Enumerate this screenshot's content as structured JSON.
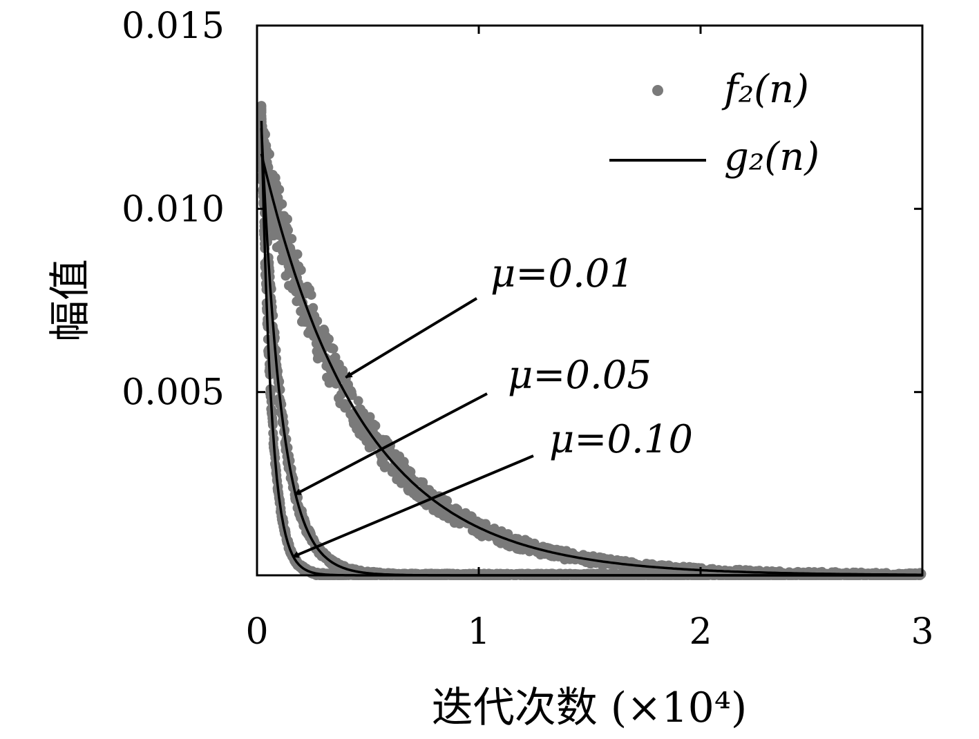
{
  "chart_data": {
    "type": "scatter",
    "xlabel": "迭代次数 (×10⁴)",
    "ylabel": "幅值",
    "xlim": [
      0,
      3
    ],
    "ylim": [
      0,
      0.015
    ],
    "x_ticks": [
      0,
      1,
      2,
      3
    ],
    "x_tick_labels": [
      "0",
      "1",
      "2",
      "3"
    ],
    "y_ticks": [
      0.005,
      0.01,
      0.015
    ],
    "y_tick_labels": [
      "0.005",
      "0.010",
      "0.015"
    ],
    "legend": {
      "placement": "top-right",
      "entries": [
        {
          "label": "f₂(n)",
          "marker": "dot",
          "color": "#7a7a7a"
        },
        {
          "label": "g₂(n)",
          "marker": "line",
          "color": "#000000"
        }
      ]
    },
    "series": [
      {
        "mu": 0.01,
        "label": "μ=0.01",
        "A": 0.0115,
        "tau": 0.45,
        "scatter_spread": 0.001,
        "annotation_point": [
          0.4,
          0.0054
        ]
      },
      {
        "mu": 0.05,
        "label": "μ=0.05",
        "A": 0.0122,
        "tau": 0.09,
        "scatter_spread": 0.0006,
        "annotation_point": [
          0.17,
          0.0022
        ]
      },
      {
        "mu": 0.1,
        "label": "μ=0.10",
        "A": 0.0124,
        "tau": 0.045,
        "scatter_spread": 0.0004,
        "annotation_point": [
          0.16,
          0.0005
        ]
      }
    ]
  }
}
